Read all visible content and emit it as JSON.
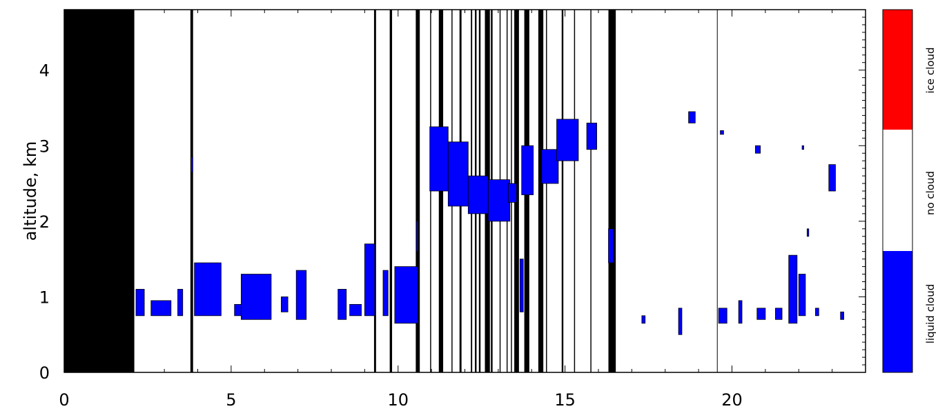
{
  "chart_data": {
    "type": "heatmap",
    "title": "",
    "xlabel": "",
    "ylabel": "altitude, km",
    "xlim": [
      0,
      24
    ],
    "ylim": [
      0,
      4.8
    ],
    "x_ticks": [
      0,
      5,
      10,
      15,
      20
    ],
    "y_ticks": [
      0,
      1,
      2,
      3,
      4
    ],
    "classes": [
      {
        "name": "liquid cloud",
        "color": "#0000ff"
      },
      {
        "name": "no cloud",
        "color": "#ffffff"
      },
      {
        "name": "ice cloud",
        "color": "#ff0000"
      }
    ],
    "no_data_color": "#000000",
    "no_data_intervals": [
      [
        0,
        2.1
      ],
      [
        3.78,
        3.86
      ],
      [
        9.28,
        9.34
      ],
      [
        9.75,
        9.82
      ],
      [
        10.53,
        10.65
      ],
      [
        10.96,
        10.99
      ],
      [
        11.22,
        11.35
      ],
      [
        11.6,
        11.63
      ],
      [
        11.84,
        11.9
      ],
      [
        12.18,
        12.22
      ],
      [
        12.3,
        12.35
      ],
      [
        12.42,
        12.47
      ],
      [
        12.6,
        12.75
      ],
      [
        12.78,
        12.83
      ],
      [
        13.04,
        13.07
      ],
      [
        13.25,
        13.28
      ],
      [
        13.38,
        13.41
      ],
      [
        13.48,
        13.62
      ],
      [
        13.78,
        13.93
      ],
      [
        14.2,
        14.35
      ],
      [
        14.43,
        14.46
      ],
      [
        14.9,
        14.95
      ],
      [
        15.27,
        15.3
      ],
      [
        15.76,
        15.79
      ],
      [
        16.3,
        16.52
      ],
      [
        19.55,
        19.57
      ]
    ],
    "liquid_cloud_patches": [
      [
        2.15,
        2.4,
        0.75,
        1.1
      ],
      [
        2.6,
        3.2,
        0.75,
        0.95
      ],
      [
        3.4,
        3.55,
        0.75,
        1.1
      ],
      [
        3.8,
        3.85,
        2.65,
        2.85
      ],
      [
        3.9,
        4.7,
        0.75,
        1.45
      ],
      [
        5.1,
        5.4,
        0.75,
        0.9
      ],
      [
        5.3,
        6.2,
        0.7,
        1.3
      ],
      [
        6.5,
        6.7,
        0.8,
        1.0
      ],
      [
        6.95,
        7.25,
        0.7,
        1.35
      ],
      [
        8.2,
        8.45,
        0.7,
        1.1
      ],
      [
        8.55,
        8.9,
        0.75,
        0.9
      ],
      [
        9.0,
        9.3,
        0.75,
        1.7
      ],
      [
        9.55,
        9.7,
        0.75,
        1.35
      ],
      [
        9.9,
        10.6,
        0.65,
        1.4
      ],
      [
        10.55,
        10.6,
        1.6,
        2.0
      ],
      [
        10.95,
        11.5,
        2.4,
        3.25
      ],
      [
        11.5,
        12.1,
        2.2,
        3.05
      ],
      [
        12.1,
        12.7,
        2.1,
        2.6
      ],
      [
        12.7,
        13.35,
        2.0,
        2.55
      ],
      [
        13.3,
        13.55,
        2.25,
        2.5
      ],
      [
        13.7,
        14.05,
        2.35,
        3.0
      ],
      [
        14.3,
        14.8,
        2.5,
        2.95
      ],
      [
        14.75,
        15.4,
        2.8,
        3.35
      ],
      [
        15.65,
        15.95,
        2.95,
        3.3
      ],
      [
        16.3,
        16.45,
        1.45,
        1.9
      ],
      [
        13.65,
        13.75,
        0.8,
        1.5
      ],
      [
        17.3,
        17.4,
        0.65,
        0.75
      ],
      [
        18.4,
        18.5,
        0.5,
        0.85
      ],
      [
        18.7,
        18.9,
        3.3,
        3.45
      ],
      [
        19.65,
        19.75,
        3.15,
        3.2
      ],
      [
        19.6,
        19.85,
        0.65,
        0.85
      ],
      [
        20.2,
        20.3,
        0.65,
        0.95
      ],
      [
        20.7,
        20.85,
        2.9,
        3.0
      ],
      [
        20.75,
        21.0,
        0.7,
        0.85
      ],
      [
        21.3,
        21.5,
        0.7,
        0.85
      ],
      [
        21.7,
        21.95,
        0.65,
        1.55
      ],
      [
        22.0,
        22.2,
        0.75,
        1.3
      ],
      [
        22.1,
        22.15,
        2.95,
        3.0
      ],
      [
        22.25,
        22.3,
        1.8,
        1.9
      ],
      [
        22.5,
        22.6,
        0.75,
        0.85
      ],
      [
        22.9,
        23.1,
        2.4,
        2.75
      ],
      [
        23.25,
        23.35,
        0.7,
        0.8
      ]
    ],
    "colorbar": {
      "labels": [
        "liquid cloud",
        "no cloud",
        "ice cloud"
      ]
    }
  }
}
